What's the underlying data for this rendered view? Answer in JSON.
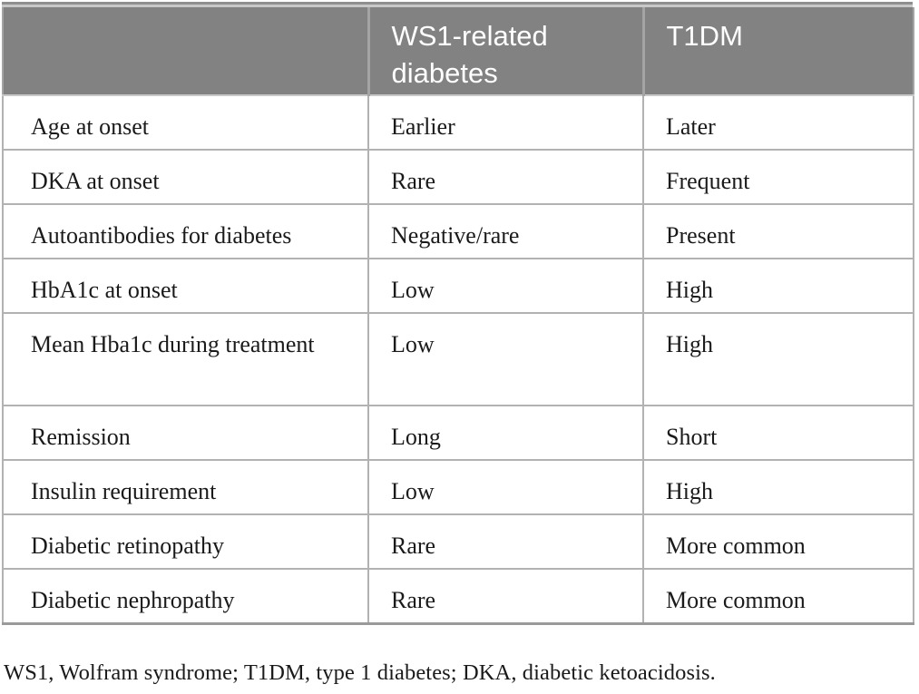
{
  "table": {
    "header": {
      "feature": "",
      "ws1": "WS1-related diabetes",
      "t1dm": "T1DM"
    },
    "rows": [
      {
        "feature": "Age at onset",
        "ws1": "Earlier",
        "t1dm": "Later"
      },
      {
        "feature": "DKA at onset",
        "ws1": "Rare",
        "t1dm": "Frequent"
      },
      {
        "feature": "Autoantibodies for diabetes",
        "ws1": "Negative/rare",
        "t1dm": "Present"
      },
      {
        "feature": "HbA1c at onset",
        "ws1": "Low",
        "t1dm": "High"
      },
      {
        "feature": "Mean Hba1c during treatment",
        "ws1": "Low",
        "t1dm": "High"
      },
      {
        "feature": "Remission",
        "ws1": "Long",
        "t1dm": "Short"
      },
      {
        "feature": "Insulin requirement",
        "ws1": "Low",
        "t1dm": "High"
      },
      {
        "feature": "Diabetic retinopathy",
        "ws1": "Rare",
        "t1dm": "More common"
      },
      {
        "feature": "Diabetic nephropathy",
        "ws1": "Rare",
        "t1dm": "More common"
      }
    ],
    "footnote": "WS1, Wolfram syndrome; T1DM, type 1 diabetes; DKA, diabetic ketoacidosis."
  },
  "colors": {
    "header_bg": "#828282",
    "header_text": "#ffffff",
    "header_divider": "#a4a4a4",
    "top_bar": "#8f8f8f",
    "top_bar_light": "#c8c8c8",
    "cell_border": "#b2b2b2",
    "bottom_border": "#9a9a9a",
    "body_text": "#1a1a1a",
    "page_bg": "#ffffff"
  }
}
